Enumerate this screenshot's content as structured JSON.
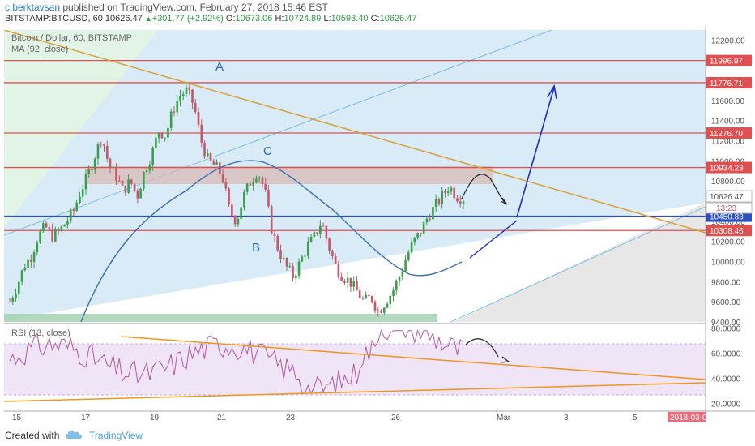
{
  "header": {
    "user": "c.berktavsan",
    "published": " published on TradingView.com, February 27, 2018 15:46 EST",
    "symbol": "BITSTAMP:BTCUSD, 60",
    "last": "10626.47",
    "change": "+301.77 (+2.92%)",
    "o_label": "O:",
    "o": "10673.06",
    "h_label": "H:",
    "h": "10724.89",
    "l_label": "L:",
    "l": "10593.40",
    "c_label": "C:",
    "c": "10626.47"
  },
  "legend": {
    "main": "Bitcoin / Dollar, 60, BITSTAMP",
    "ma": "MA (92, close)",
    "rsi": "RSI (13, close)"
  },
  "annotations": {
    "a": "A",
    "b": "B",
    "c": "C"
  },
  "footer": {
    "created": "Created with",
    "brand": "TradingView"
  },
  "colors": {
    "up": "#3a9e4c",
    "down": "#c05a6a",
    "resistance": "#e05050",
    "support": "#2c4fbf",
    "trend": "#d9a13b",
    "arrow": "#1f2dbf",
    "ma": "#3b6fb0"
  },
  "chart_data": {
    "type": "candlestick",
    "symbol": "BTCUSD",
    "interval": "60",
    "price_axis": [
      "12200.00",
      "12000.00",
      "11800.00",
      "11600.00",
      "11400.00",
      "11200.00",
      "11000.00",
      "10800.00",
      "10600.00",
      "10400.00",
      "10200.00",
      "10000.00",
      "9800.00",
      "9600.00",
      "9400.00"
    ],
    "price_range": [
      9400,
      12300
    ],
    "rsi_axis": [
      "80.0000",
      "60.0000",
      "40.0000",
      "20.0000"
    ],
    "rsi_range": [
      15,
      83
    ],
    "date_ticks": [
      "15",
      "17",
      "19",
      "21",
      "23",
      "26",
      "Mar",
      "3",
      "5"
    ],
    "date_badge": "2018-03-0",
    "horizontal_levels": [
      {
        "label": "11996.97",
        "value": 11996.97,
        "kind": "resistance"
      },
      {
        "label": "11776.71",
        "value": 11776.71,
        "kind": "resistance"
      },
      {
        "label": "11276.70",
        "value": 11276.7,
        "kind": "resistance"
      },
      {
        "label": "10934.23",
        "value": 10934.23,
        "kind": "resistance"
      },
      {
        "label": "10450.83",
        "value": 10450.83,
        "kind": "support"
      },
      {
        "label": "10308.46",
        "value": 10308.46,
        "kind": "resistance"
      }
    ],
    "last_price_label": "10626.47",
    "countdown_label": "13:23",
    "close_path": [
      9600,
      9750,
      9950,
      10050,
      10250,
      10350,
      10250,
      10300,
      10400,
      10500,
      10700,
      10850,
      11050,
      11250,
      10950,
      10850,
      10700,
      10800,
      10650,
      10900,
      11050,
      11300,
      11250,
      11500,
      11650,
      11700,
      11550,
      11200,
      11000,
      10950,
      10850,
      10500,
      10400,
      10650,
      10800,
      10900,
      10700,
      10300,
      10100,
      9950,
      9850,
      10000,
      10150,
      10250,
      10400,
      10150,
      9950,
      9850,
      9800,
      9700,
      9600,
      9650,
      9500,
      9600,
      9700,
      9850,
      10050,
      10200,
      10300,
      10450,
      10550,
      10650,
      10750,
      10650,
      10626
    ]
  }
}
